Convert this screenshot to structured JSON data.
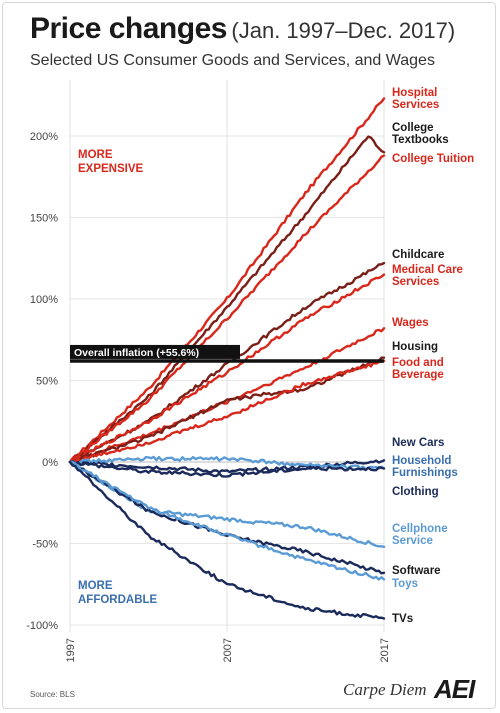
{
  "header": {
    "title_main": "Price changes",
    "title_range": "(Jan. 1997–Dec. 2017)",
    "subtitle": "Selected US Consumer Goods and Services, and Wages"
  },
  "footer": {
    "source": "Source: BLS",
    "brand": "Carpe Diem",
    "logo": "AEI"
  },
  "chart_data": {
    "type": "line",
    "x_ticks": [
      "1997",
      "2007",
      "2017"
    ],
    "ylim": [
      -100,
      225
    ],
    "y_ticks": [
      {
        "value": 200,
        "label": "200%"
      },
      {
        "value": 150,
        "label": "150%"
      },
      {
        "value": 100,
        "label": "100%"
      },
      {
        "value": 50,
        "label": "50%"
      },
      {
        "value": 0,
        "label": "0%"
      },
      {
        "value": -50,
        "label": "-50%"
      },
      {
        "value": -100,
        "label": "-100%"
      }
    ],
    "annotations": {
      "more_expensive": [
        "MORE",
        "EXPENSIVE"
      ],
      "more_affordable": [
        "MORE",
        "AFFORDABLE"
      ],
      "inflation": {
        "label": "Overall inflation (+55.6%)",
        "value": 62
      }
    },
    "colors": {
      "red": "#d8281c",
      "dark_red": "#7a1f17",
      "navy": "#1a2a5a",
      "light_blue": "#5b9bd5",
      "mid_blue": "#3a6fae"
    },
    "series": [
      {
        "name": "Hospital Services",
        "label_lines": [
          "Hospital",
          "Services"
        ],
        "color": "#d8281c",
        "label_color": "#d8281c",
        "x": [
          1997,
          2002,
          2007,
          2012,
          2017
        ],
        "y": [
          0,
          45,
          100,
          165,
          223
        ]
      },
      {
        "name": "College Textbooks",
        "label_lines": [
          "College",
          "Textbooks"
        ],
        "color": "#7a1f17",
        "label_color": "#1a1a1a",
        "x": [
          1997,
          2002,
          2007,
          2012,
          2016,
          2017
        ],
        "y": [
          0,
          40,
          95,
          152,
          200,
          190
        ]
      },
      {
        "name": "College Tuition",
        "label_lines": [
          "College Tuition"
        ],
        "color": "#d8281c",
        "label_color": "#d8281c",
        "x": [
          1997,
          2002,
          2007,
          2012,
          2017
        ],
        "y": [
          0,
          38,
          88,
          140,
          188
        ]
      },
      {
        "name": "Childcare",
        "label_lines": [
          "Childcare"
        ],
        "color": "#7a1f17",
        "label_color": "#1a1a1a",
        "x": [
          1997,
          2002,
          2007,
          2012,
          2017
        ],
        "y": [
          0,
          25,
          60,
          95,
          122
        ]
      },
      {
        "name": "Medical Care Services",
        "label_lines": [
          "Medical Care",
          "Services"
        ],
        "color": "#d8281c",
        "label_color": "#d8281c",
        "x": [
          1997,
          2002,
          2007,
          2012,
          2017
        ],
        "y": [
          0,
          25,
          55,
          88,
          115
        ]
      },
      {
        "name": "Wages",
        "label_lines": [
          "Wages"
        ],
        "color": "#d8281c",
        "label_color": "#d8281c",
        "x": [
          1997,
          2002,
          2007,
          2012,
          2017
        ],
        "y": [
          0,
          17,
          37,
          58,
          82
        ]
      },
      {
        "name": "Housing",
        "label_lines": [
          "Housing"
        ],
        "color": "#7a1f17",
        "label_color": "#1a1a1a",
        "x": [
          1997,
          2002,
          2007,
          2012,
          2017
        ],
        "y": [
          0,
          15,
          38,
          45,
          64
        ]
      },
      {
        "name": "Food and Beverage",
        "label_lines": [
          "Food and",
          "Beverage"
        ],
        "color": "#d8281c",
        "label_color": "#d8281c",
        "x": [
          1997,
          2002,
          2007,
          2012,
          2017
        ],
        "y": [
          0,
          12,
          28,
          48,
          62
        ]
      },
      {
        "name": "New Cars",
        "label_lines": [
          "New Cars"
        ],
        "color": "#1a2a5a",
        "label_color": "#1a2a5a",
        "x": [
          1997,
          2002,
          2007,
          2012,
          2017
        ],
        "y": [
          0,
          -3,
          -6,
          -3,
          1
        ]
      },
      {
        "name": "Household Furnishings",
        "label_lines": [
          "Household",
          "Furnishings"
        ],
        "color": "#5b9bd5",
        "label_color": "#3a6fae",
        "x": [
          1997,
          2002,
          2007,
          2012,
          2017
        ],
        "y": [
          0,
          2,
          2,
          -2,
          -4
        ]
      },
      {
        "name": "Clothing",
        "label_lines": [
          "Clothing"
        ],
        "color": "#1a2a5a",
        "label_color": "#1a2a5a",
        "x": [
          1997,
          2002,
          2007,
          2012,
          2017
        ],
        "y": [
          0,
          -6,
          -8,
          -4,
          -4
        ]
      },
      {
        "name": "Cellphone Service",
        "label_lines": [
          "Cellphone",
          "Service"
        ],
        "color": "#5b9bd5",
        "label_color": "#5b9bd5",
        "x": [
          1997,
          2002,
          2007,
          2012,
          2017
        ],
        "y": [
          0,
          -30,
          -35,
          -40,
          -52
        ]
      },
      {
        "name": "Software",
        "label_lines": [
          "Software"
        ],
        "color": "#1a2a5a",
        "label_color": "#1a1a1a",
        "x": [
          1997,
          2002,
          2007,
          2012,
          2017
        ],
        "y": [
          0,
          -30,
          -45,
          -55,
          -68
        ]
      },
      {
        "name": "Toys",
        "label_lines": [
          "Toys"
        ],
        "color": "#5b9bd5",
        "label_color": "#5b9bd5",
        "x": [
          1997,
          2002,
          2007,
          2012,
          2017
        ],
        "y": [
          0,
          -28,
          -45,
          -60,
          -72
        ]
      },
      {
        "name": "TVs",
        "label_lines": [
          "TVs"
        ],
        "color": "#1a2a5a",
        "label_color": "#1a1a1a",
        "x": [
          1997,
          2002,
          2007,
          2012,
          2017
        ],
        "y": [
          0,
          -45,
          -75,
          -90,
          -96
        ]
      }
    ]
  }
}
